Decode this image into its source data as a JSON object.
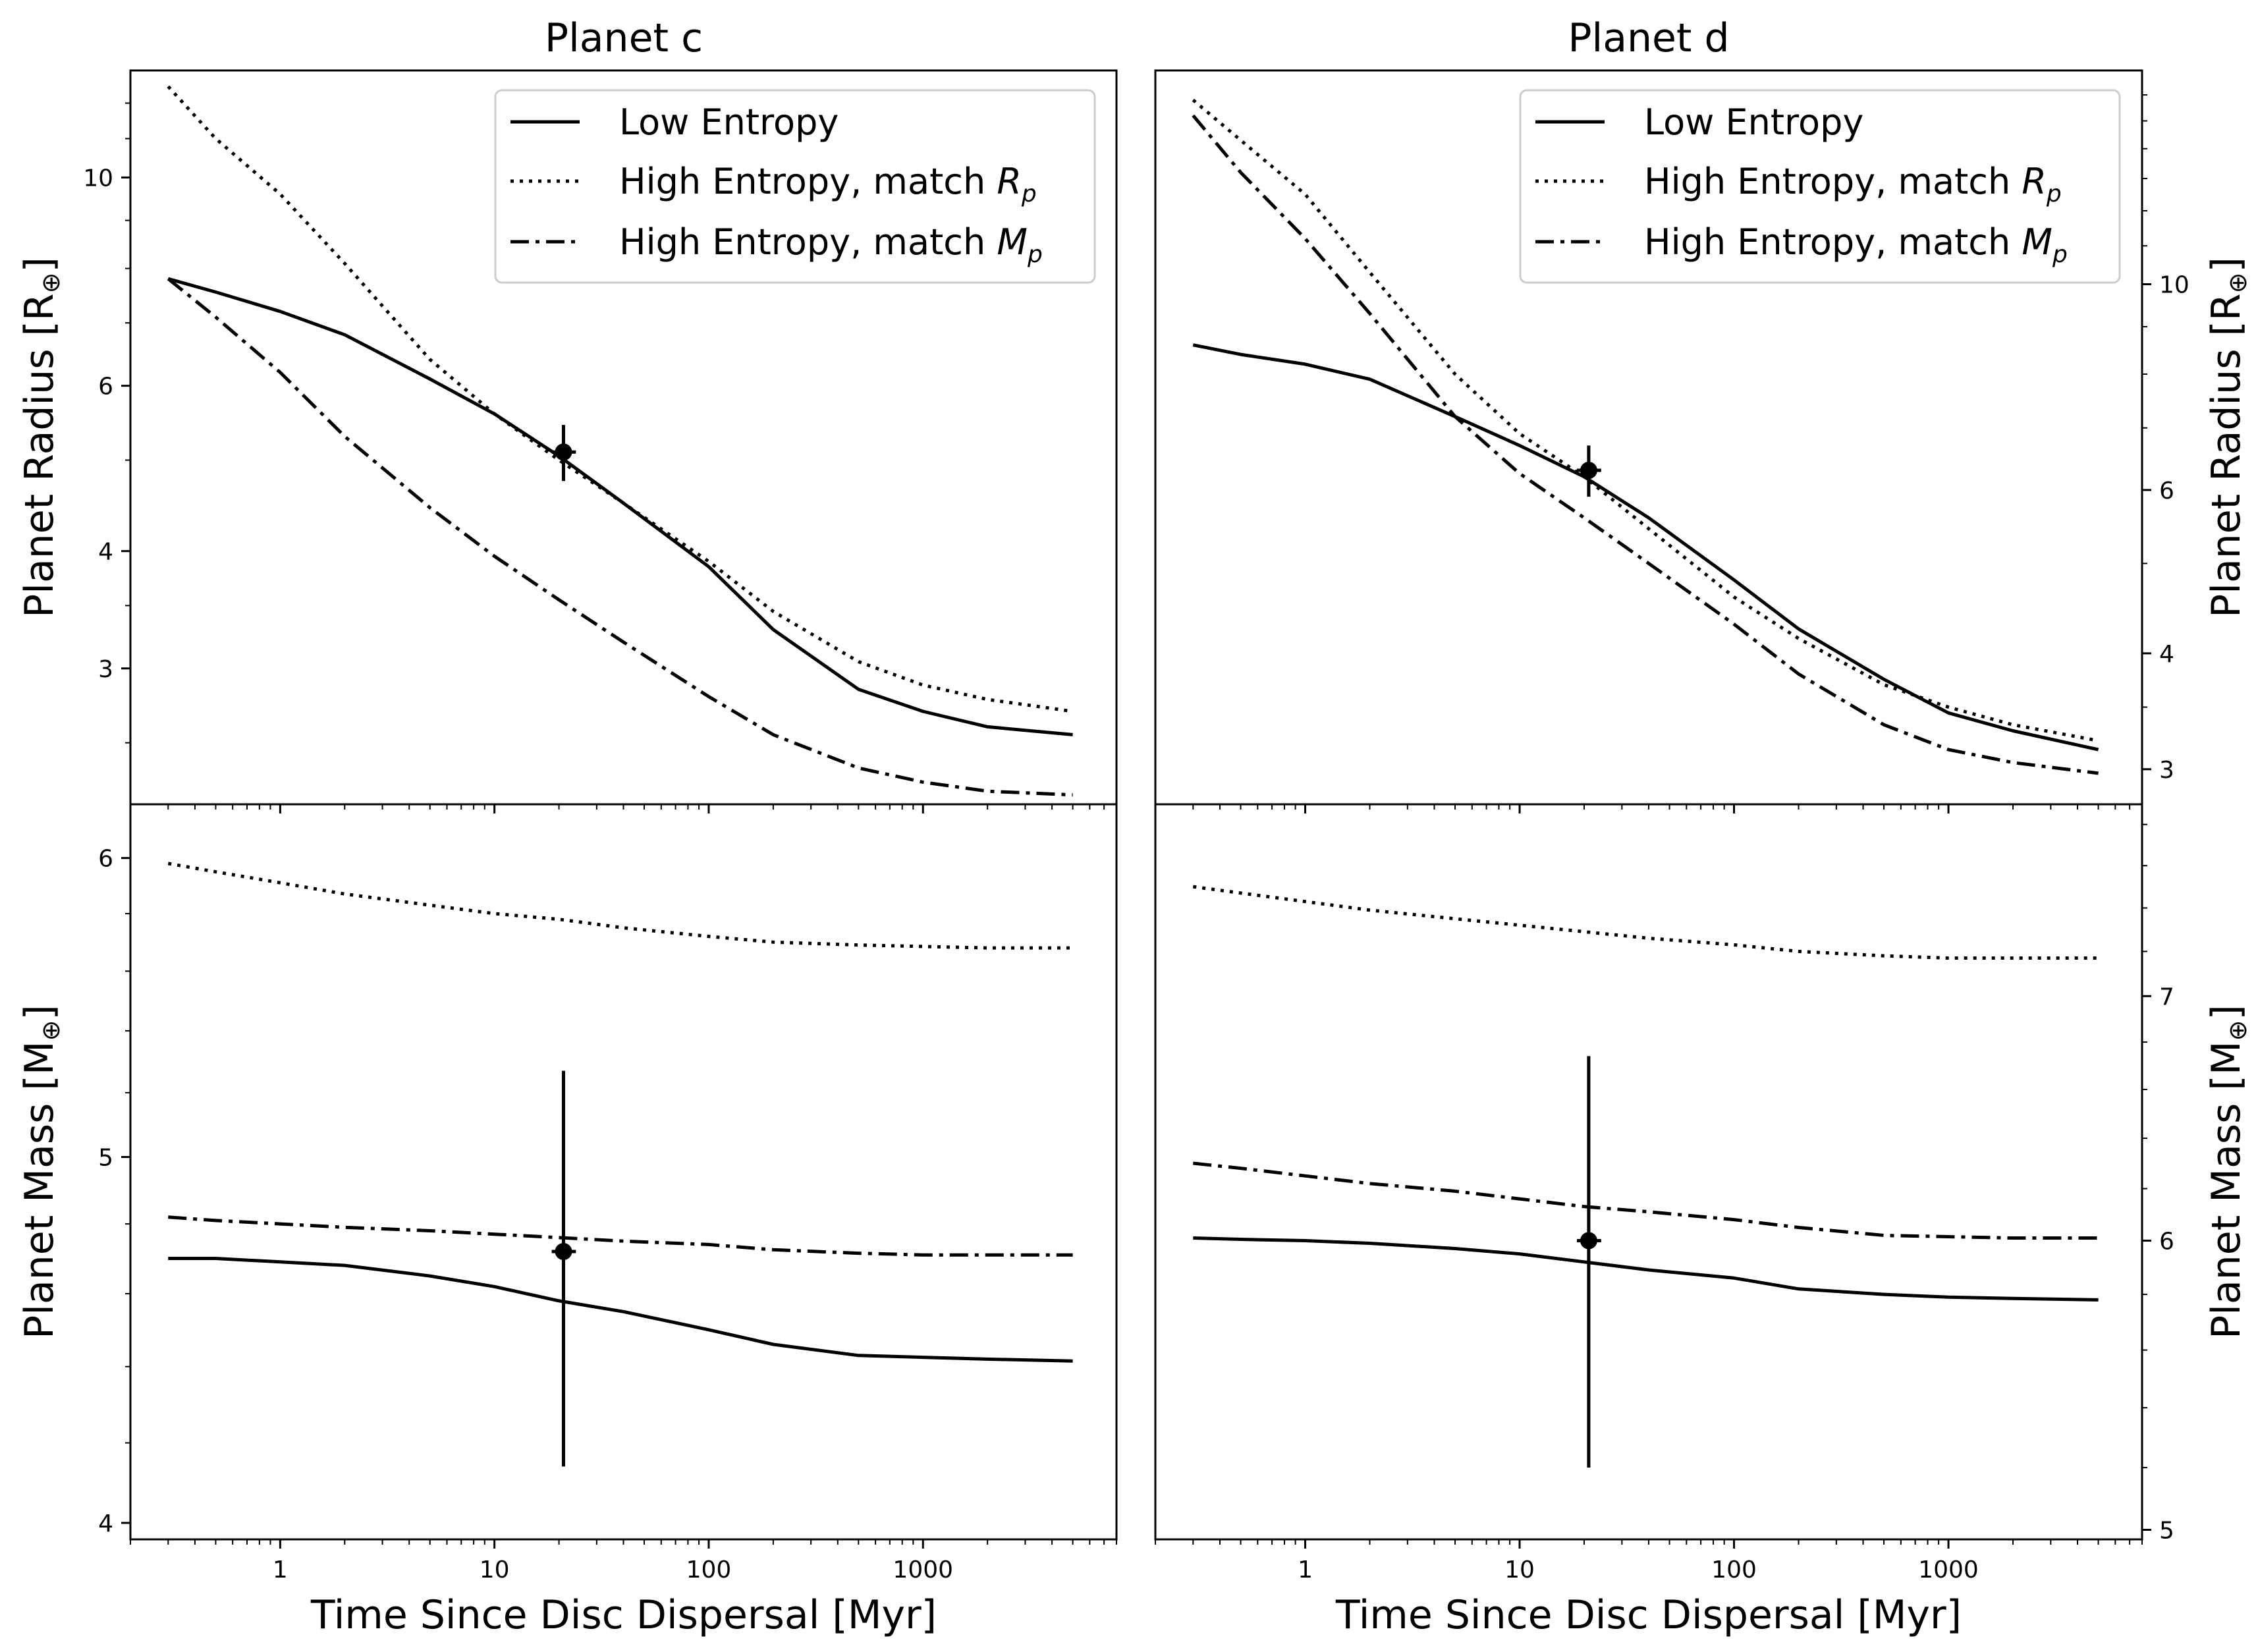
{
  "figure": {
    "xlabel": "Time Since Disc Dispersal [Myr]",
    "ylabel_radius": "Planet Radius [R",
    "ylabel_mass": "Planet Mass [M",
    "ylabel_symbol": "⊕",
    "ylabel_close": "]",
    "legend": {
      "low": "Low Entropy",
      "high_r_prefix": "High Entropy, match ",
      "high_r_sym": "R",
      "high_r_sub": "p",
      "high_m_prefix": "High Entropy, match ",
      "high_m_sym": "M",
      "high_m_sub": "p"
    }
  },
  "chart_data": [
    {
      "type": "line",
      "panel": "planet-c-radius",
      "title": "Planet c",
      "xscale": "log",
      "yscale": "log",
      "xlim": [
        0.2,
        8000
      ],
      "ylim": [
        2.15,
        13.0
      ],
      "yticks": [
        3,
        4,
        6,
        10
      ],
      "ytick_labels": [
        "3",
        "4",
        "6",
        "10"
      ],
      "yaxis_side": "left",
      "legend_position": "upper right",
      "series": [
        {
          "name": "Low Entropy",
          "style": "solid",
          "x": [
            0.3,
            0.5,
            1,
            2,
            5,
            10,
            20,
            40,
            100,
            200,
            500,
            1000,
            2000,
            5000
          ],
          "y": [
            7.8,
            7.55,
            7.2,
            6.8,
            6.1,
            5.6,
            5.05,
            4.5,
            3.85,
            3.3,
            2.85,
            2.7,
            2.6,
            2.55
          ]
        },
        {
          "name": "High Entropy, match Rp",
          "style": "dotted",
          "x": [
            0.3,
            0.5,
            1,
            2,
            5,
            10,
            20,
            40,
            100,
            200,
            500,
            1000,
            2000,
            5000
          ],
          "y": [
            12.5,
            11.0,
            9.6,
            8.1,
            6.4,
            5.6,
            5.0,
            4.5,
            3.9,
            3.45,
            3.05,
            2.88,
            2.78,
            2.7
          ]
        },
        {
          "name": "High Entropy, match Mp",
          "style": "dashdot",
          "x": [
            0.3,
            0.5,
            1,
            2,
            5,
            10,
            20,
            40,
            100,
            200,
            500,
            1000,
            2000,
            5000
          ],
          "y": [
            7.8,
            7.1,
            6.2,
            5.3,
            4.45,
            3.95,
            3.55,
            3.2,
            2.8,
            2.55,
            2.35,
            2.27,
            2.22,
            2.2
          ]
        }
      ],
      "points": [
        {
          "x": 21,
          "y": 5.1,
          "xerr": [
            2.5,
            3
          ],
          "yerr": [
            0.35,
            0.35
          ]
        }
      ]
    },
    {
      "type": "line",
      "panel": "planet-c-mass",
      "xscale": "log",
      "yscale": "log",
      "xlim": [
        0.2,
        8000
      ],
      "ylim": [
        3.96,
        6.2
      ],
      "yticks": [
        4,
        5,
        6
      ],
      "ytick_labels": [
        "4",
        "5",
        "6"
      ],
      "yaxis_side": "left",
      "series": [
        {
          "name": "Low Entropy",
          "style": "solid",
          "x": [
            0.3,
            0.5,
            1,
            2,
            5,
            10,
            20,
            40,
            100,
            200,
            500,
            1000,
            2000,
            5000
          ],
          "y": [
            4.7,
            4.7,
            4.69,
            4.68,
            4.65,
            4.62,
            4.58,
            4.55,
            4.5,
            4.46,
            4.43,
            4.425,
            4.42,
            4.415
          ]
        },
        {
          "name": "High Entropy, match Rp",
          "style": "dotted",
          "x": [
            0.3,
            0.5,
            1,
            2,
            5,
            10,
            20,
            40,
            100,
            200,
            500,
            1000,
            2000,
            5000
          ],
          "y": [
            5.98,
            5.95,
            5.91,
            5.87,
            5.83,
            5.8,
            5.78,
            5.75,
            5.72,
            5.7,
            5.69,
            5.685,
            5.68,
            5.68
          ]
        },
        {
          "name": "High Entropy, match Mp",
          "style": "dashdot",
          "x": [
            0.3,
            0.5,
            1,
            2,
            5,
            10,
            20,
            40,
            100,
            200,
            500,
            1000,
            2000,
            5000
          ],
          "y": [
            4.82,
            4.81,
            4.8,
            4.79,
            4.78,
            4.77,
            4.76,
            4.75,
            4.74,
            4.725,
            4.715,
            4.71,
            4.71,
            4.71
          ]
        }
      ],
      "points": [
        {
          "x": 21,
          "y": 4.72,
          "xerr": [
            2.5,
            3
          ],
          "yerr": [
            0.58,
            0.55
          ]
        }
      ]
    },
    {
      "type": "line",
      "panel": "planet-d-radius",
      "title": "Planet d",
      "xscale": "log",
      "yscale": "log",
      "xlim": [
        0.2,
        8000
      ],
      "ylim": [
        2.75,
        17.0
      ],
      "yticks": [
        3,
        4,
        6,
        10
      ],
      "ytick_labels": [
        "3",
        "4",
        "6",
        "10"
      ],
      "yaxis_side": "right",
      "legend_position": "upper right",
      "series": [
        {
          "name": "Low Entropy",
          "style": "solid",
          "x": [
            0.3,
            0.5,
            1,
            2,
            5,
            10,
            20,
            40,
            100,
            200,
            500,
            1000,
            2000,
            5000
          ],
          "y": [
            8.6,
            8.4,
            8.2,
            7.9,
            7.2,
            6.7,
            6.2,
            5.6,
            4.8,
            4.25,
            3.75,
            3.45,
            3.3,
            3.15
          ]
        },
        {
          "name": "High Entropy, match Rp",
          "style": "dotted",
          "x": [
            0.3,
            0.5,
            1,
            2,
            5,
            10,
            20,
            40,
            100,
            200,
            500,
            1000,
            2000,
            5000
          ],
          "y": [
            15.8,
            14.3,
            12.5,
            10.3,
            8.0,
            6.9,
            6.2,
            5.45,
            4.6,
            4.15,
            3.7,
            3.5,
            3.35,
            3.22
          ]
        },
        {
          "name": "High Entropy, match Mp",
          "style": "dashdot",
          "x": [
            0.3,
            0.5,
            1,
            2,
            5,
            10,
            20,
            40,
            100,
            200,
            500,
            1000,
            2000,
            5000
          ],
          "y": [
            15.2,
            13.2,
            11.2,
            9.3,
            7.2,
            6.25,
            5.6,
            5.0,
            4.3,
            3.8,
            3.35,
            3.15,
            3.05,
            2.97
          ]
        }
      ],
      "points": [
        {
          "x": 21,
          "y": 6.3,
          "xerr": [
            2.5,
            3
          ],
          "yerr": [
            0.4,
            0.4
          ]
        }
      ]
    },
    {
      "type": "line",
      "panel": "planet-d-mass",
      "xscale": "log",
      "yscale": "log",
      "xlim": [
        0.2,
        8000
      ],
      "ylim": [
        4.97,
        7.9
      ],
      "yticks": [
        5,
        6,
        7
      ],
      "ytick_labels": [
        "5",
        "6",
        "7"
      ],
      "yaxis_side": "right",
      "series": [
        {
          "name": "Low Entropy",
          "style": "solid",
          "x": [
            0.3,
            0.5,
            1,
            2,
            5,
            10,
            20,
            40,
            100,
            200,
            500,
            1000,
            2000,
            5000
          ],
          "y": [
            6.01,
            6.005,
            6.0,
            5.99,
            5.97,
            5.95,
            5.92,
            5.89,
            5.86,
            5.82,
            5.8,
            5.79,
            5.785,
            5.78
          ]
        },
        {
          "name": "High Entropy, match Rp",
          "style": "dotted",
          "x": [
            0.3,
            0.5,
            1,
            2,
            5,
            10,
            20,
            40,
            100,
            200,
            500,
            1000,
            2000,
            5000
          ],
          "y": [
            7.5,
            7.47,
            7.43,
            7.39,
            7.35,
            7.32,
            7.29,
            7.26,
            7.23,
            7.2,
            7.18,
            7.17,
            7.17,
            7.17
          ]
        },
        {
          "name": "High Entropy, match Mp",
          "style": "dashdot",
          "x": [
            0.3,
            0.5,
            1,
            2,
            5,
            10,
            20,
            40,
            100,
            200,
            500,
            1000,
            2000,
            5000
          ],
          "y": [
            6.3,
            6.28,
            6.25,
            6.22,
            6.19,
            6.16,
            6.13,
            6.11,
            6.08,
            6.05,
            6.02,
            6.015,
            6.01,
            6.01
          ]
        }
      ],
      "points": [
        {
          "x": 21,
          "y": 6.0,
          "xerr": [
            2.5,
            3
          ],
          "yerr": [
            0.8,
            0.74
          ]
        }
      ]
    }
  ],
  "x_ticks": [
    1,
    10,
    100,
    1000
  ],
  "x_tick_labels": [
    "1",
    "10",
    "100",
    "1000"
  ]
}
